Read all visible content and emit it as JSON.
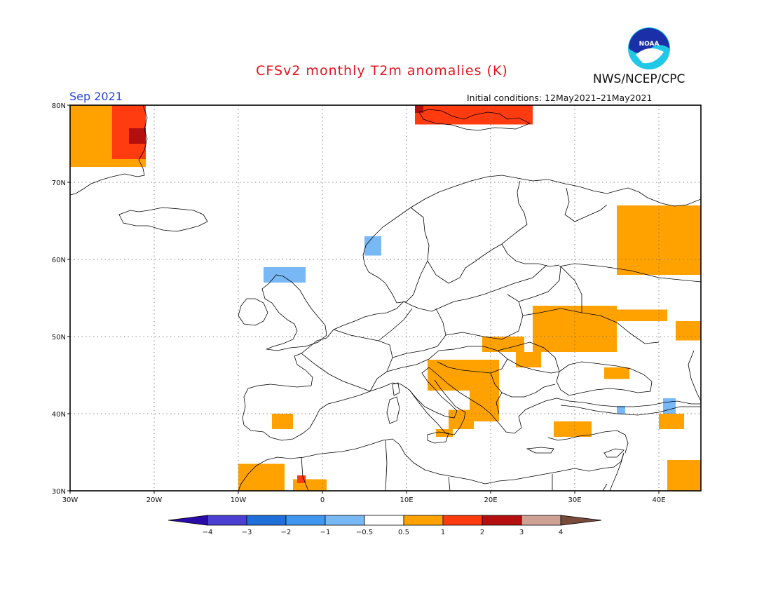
{
  "header": {
    "title": "CFSv2 monthly T2m anomalies (K)",
    "agency": "NWS/NCEP/CPC",
    "month": "Sep 2021",
    "initial_conditions": "Initial conditions: 12May2021–21May2021",
    "logo_text": "NOAA"
  },
  "map": {
    "lon_range": [
      -30,
      45
    ],
    "lat_range": [
      30,
      80
    ],
    "lon_ticks": [
      "30W",
      "20W",
      "10W",
      "0",
      "10E",
      "20E",
      "30E",
      "40E"
    ],
    "lat_ticks": [
      "80N",
      "70N",
      "60N",
      "50N",
      "40N",
      "30N"
    ],
    "gridlines": "dotted",
    "coastline_color": "#000000"
  },
  "legend": {
    "colors": [
      "#2a0aa8",
      "#4a3fd0",
      "#1f6fd8",
      "#3f96ee",
      "#78b8f5",
      "#ffffff",
      "#ffa200",
      "#ff3b0f",
      "#b30f0f",
      "#cfa195",
      "#7a4a3a"
    ],
    "labels": [
      "−4",
      "−3",
      "−2",
      "−1",
      "−0.5",
      "0.5",
      "1",
      "2",
      "3",
      "4"
    ]
  },
  "anomaly_classes": {
    "orange": "#ffa200",
    "red": "#ff3b0f",
    "darkred": "#b30f0f",
    "lightblue": "#78b8f5"
  },
  "anomaly_regions": [
    {
      "name": "greenland-east",
      "class": "orange",
      "lon": [
        -30,
        -21
      ],
      "lat": [
        72,
        80
      ]
    },
    {
      "name": "greenland-east",
      "class": "red",
      "lon": [
        -25,
        -21
      ],
      "lat": [
        73,
        80
      ]
    },
    {
      "name": "greenland-east",
      "class": "darkred",
      "lon": [
        -23,
        -21
      ],
      "lat": [
        75,
        77
      ]
    },
    {
      "name": "svalbard",
      "class": "red",
      "lon": [
        11,
        25
      ],
      "lat": [
        77.5,
        80
      ]
    },
    {
      "name": "svalbard",
      "class": "darkred",
      "lon": [
        11,
        12
      ],
      "lat": [
        79,
        80
      ]
    },
    {
      "name": "north-russia",
      "class": "orange",
      "lon": [
        35,
        45
      ],
      "lat": [
        58,
        67
      ]
    },
    {
      "name": "belarus-ukraine",
      "class": "orange",
      "lon": [
        25,
        35
      ],
      "lat": [
        48,
        54
      ]
    },
    {
      "name": "central-russia",
      "class": "orange",
      "lon": [
        34,
        41
      ],
      "lat": [
        52,
        53.5
      ]
    },
    {
      "name": "south-russia",
      "class": "orange",
      "lon": [
        42,
        45
      ],
      "lat": [
        49.5,
        52
      ]
    },
    {
      "name": "carpathians",
      "class": "orange",
      "lon": [
        19,
        24
      ],
      "lat": [
        48,
        50
      ]
    },
    {
      "name": "romania",
      "class": "orange",
      "lon": [
        23,
        26
      ],
      "lat": [
        46,
        48
      ]
    },
    {
      "name": "crimea",
      "class": "orange",
      "lon": [
        33.5,
        36.5
      ],
      "lat": [
        44.5,
        46
      ]
    },
    {
      "name": "croatia",
      "class": "orange",
      "lon": [
        12.5,
        21
      ],
      "lat": [
        43,
        47
      ]
    },
    {
      "name": "balkans",
      "class": "orange",
      "lon": [
        17.5,
        21
      ],
      "lat": [
        39,
        43
      ]
    },
    {
      "name": "south-italy",
      "class": "orange",
      "lon": [
        15,
        18
      ],
      "lat": [
        38,
        40.5
      ]
    },
    {
      "name": "sicily",
      "class": "orange",
      "lon": [
        13.5,
        15.5
      ],
      "lat": [
        37,
        38
      ]
    },
    {
      "name": "turkey-west",
      "class": "orange",
      "lon": [
        27.5,
        32
      ],
      "lat": [
        37,
        39
      ]
    },
    {
      "name": "turkey-east",
      "class": "orange",
      "lon": [
        40,
        43
      ],
      "lat": [
        38,
        40
      ]
    },
    {
      "name": "spain",
      "class": "orange",
      "lon": [
        -6,
        -3.5
      ],
      "lat": [
        38,
        40
      ]
    },
    {
      "name": "morocco",
      "class": "orange",
      "lon": [
        -10,
        -4.5
      ],
      "lat": [
        30,
        33.5
      ]
    },
    {
      "name": "algeria",
      "class": "orange",
      "lon": [
        -3.5,
        0.5
      ],
      "lat": [
        30,
        31.5
      ]
    },
    {
      "name": "algeria",
      "class": "red",
      "lon": [
        -3,
        -2
      ],
      "lat": [
        31,
        32
      ]
    },
    {
      "name": "iraq",
      "class": "orange",
      "lon": [
        41,
        45
      ],
      "lat": [
        30,
        34
      ]
    },
    {
      "name": "norway",
      "class": "lightblue",
      "lon": [
        5,
        7
      ],
      "lat": [
        60.5,
        63
      ]
    },
    {
      "name": "scotland",
      "class": "lightblue",
      "lon": [
        -7,
        -2
      ],
      "lat": [
        57,
        59
      ]
    },
    {
      "name": "north-sea",
      "class": "lightblue",
      "lon": [
        -3,
        -2
      ],
      "lat": [
        57,
        58
      ]
    },
    {
      "name": "caucasus",
      "class": "lightblue",
      "lon": [
        35,
        36
      ],
      "lat": [
        40,
        41
      ]
    },
    {
      "name": "caucasus",
      "class": "lightblue",
      "lon": [
        40.5,
        42
      ],
      "lat": [
        40,
        42
      ]
    }
  ]
}
